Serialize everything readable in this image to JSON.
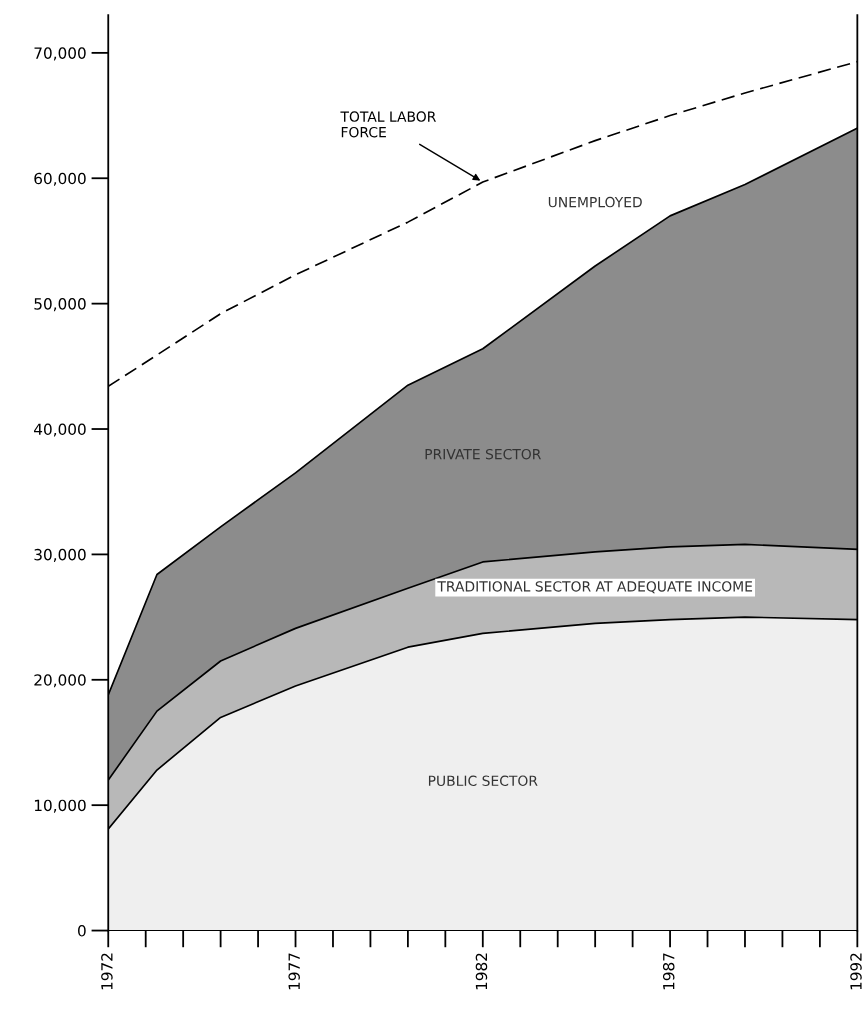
{
  "chart_data": {
    "type": "area",
    "stacked": true,
    "x": [
      1972,
      1973.3,
      1975,
      1977,
      1980,
      1982,
      1985,
      1987,
      1989,
      1992
    ],
    "series": [
      {
        "name": "PUBLIC SECTOR",
        "color": "#efefef",
        "values": [
          8100,
          12800,
          17000,
          19500,
          22600,
          23700,
          24500,
          24800,
          25000,
          24800
        ]
      },
      {
        "name": "TRADITIONAL SECTOR AT ADEQUATE INCOME",
        "color": "#b8b8b8",
        "values": [
          3900,
          4700,
          4500,
          4600,
          4700,
          5700,
          5700,
          5800,
          5800,
          5600
        ]
      },
      {
        "name": "PRIVATE SECTOR",
        "color": "#8c8c8c",
        "values": [
          6800,
          10900,
          10700,
          12400,
          16200,
          17000,
          22800,
          26400,
          28700,
          33600
        ]
      },
      {
        "name": "UNEMPLOYED",
        "color": "#ffffff",
        "line_style": "dashed",
        "values": [
          24600,
          17500,
          17000,
          15800,
          13000,
          13300,
          10000,
          8000,
          7300,
          5300
        ]
      }
    ],
    "annotations": [
      {
        "text": "TOTAL LABOR\nFORCE",
        "x": 1982,
        "y": 59700
      }
    ],
    "xlim": [
      1972,
      1992
    ],
    "xticks": [
      1972,
      1977,
      1982,
      1987,
      1992
    ],
    "ylim": [
      0,
      73000
    ],
    "yticks": [
      {
        "value": 0,
        "label": "0"
      },
      {
        "value": 10000,
        "label": "10,000"
      },
      {
        "value": 20000,
        "label": "20,000"
      },
      {
        "value": 30000,
        "label": "30,000"
      },
      {
        "value": 40000,
        "label": "40,000"
      },
      {
        "value": 50000,
        "label": "50,000"
      },
      {
        "value": 60000,
        "label": "60,000"
      },
      {
        "value": 70000,
        "label": "70,000"
      }
    ],
    "grid": false,
    "legend": false
  }
}
